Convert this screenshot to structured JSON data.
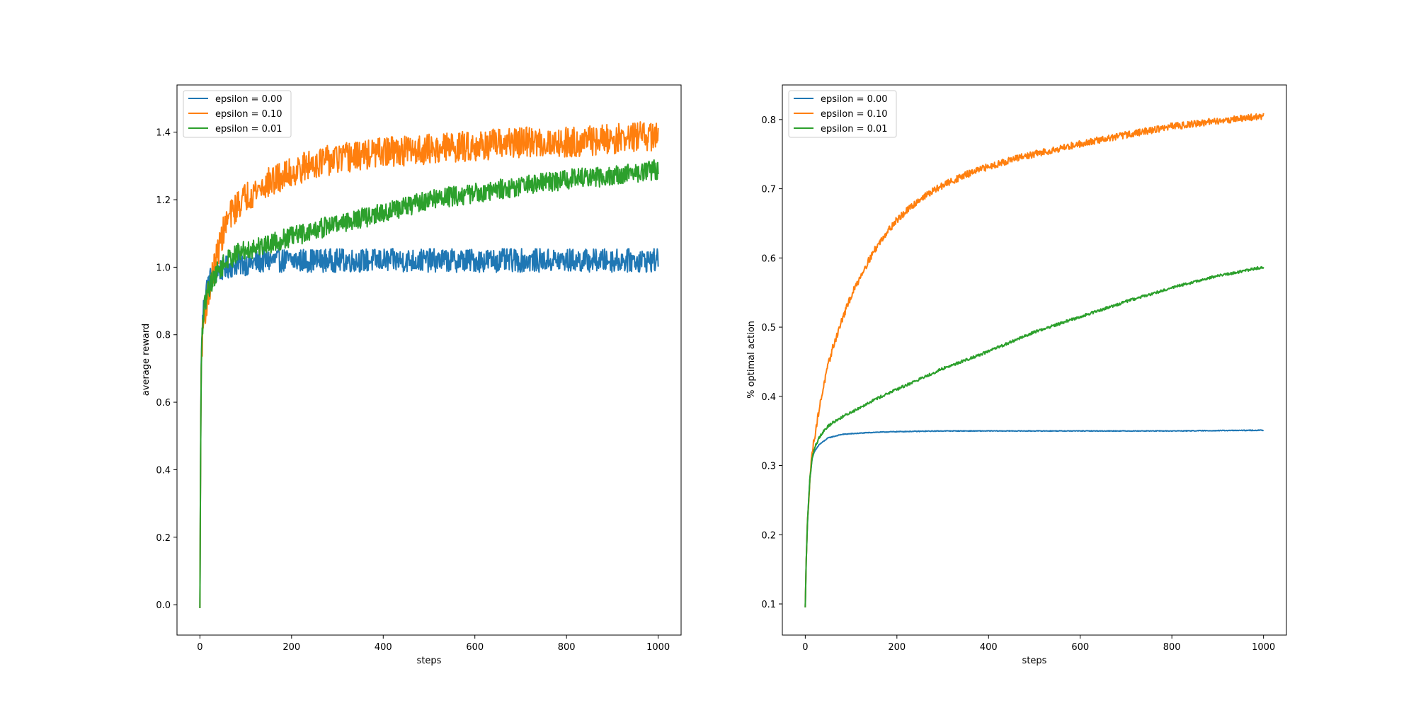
{
  "chart_data": [
    {
      "type": "line",
      "title": "",
      "xlabel": "steps",
      "ylabel": "average reward",
      "xlim": [
        -50,
        1050
      ],
      "ylim": [
        -0.09,
        1.54
      ],
      "xticks": [
        0,
        200,
        400,
        600,
        800,
        1000
      ],
      "yticks": [
        0.0,
        0.2,
        0.4,
        0.6,
        0.8,
        1.0,
        1.2,
        1.4
      ],
      "ytick_format": 1,
      "grid": false,
      "legend_position": "top-left",
      "series": [
        {
          "name": "epsilon = 0.00",
          "color": "#1f77b4",
          "noise": 0.035,
          "x": [
            0,
            1,
            2,
            3,
            5,
            8,
            10,
            15,
            20,
            30,
            40,
            60,
            80,
            100,
            150,
            200,
            300,
            400,
            500,
            600,
            700,
            800,
            900,
            1000
          ],
          "y": [
            -0.01,
            0.3,
            0.55,
            0.72,
            0.82,
            0.88,
            0.9,
            0.94,
            0.96,
            0.98,
            0.99,
            1.0,
            1.01,
            1.01,
            1.02,
            1.02,
            1.02,
            1.02,
            1.02,
            1.02,
            1.02,
            1.02,
            1.02,
            1.02
          ]
        },
        {
          "name": "epsilon = 0.10",
          "color": "#ff7f0e",
          "noise": 0.045,
          "x": [
            0,
            1,
            2,
            3,
            5,
            8,
            10,
            15,
            20,
            30,
            40,
            50,
            60,
            80,
            100,
            150,
            200,
            250,
            300,
            400,
            500,
            600,
            700,
            800,
            900,
            1000
          ],
          "y": [
            -0.01,
            0.3,
            0.55,
            0.7,
            0.78,
            0.84,
            0.86,
            0.9,
            0.93,
            0.99,
            1.05,
            1.1,
            1.14,
            1.18,
            1.21,
            1.25,
            1.28,
            1.31,
            1.32,
            1.34,
            1.35,
            1.36,
            1.37,
            1.37,
            1.38,
            1.39
          ]
        },
        {
          "name": "epsilon = 0.01",
          "color": "#2ca02c",
          "noise": 0.03,
          "x": [
            0,
            1,
            2,
            3,
            5,
            8,
            10,
            15,
            20,
            30,
            40,
            60,
            80,
            100,
            150,
            200,
            300,
            400,
            500,
            600,
            700,
            800,
            900,
            1000
          ],
          "y": [
            -0.01,
            0.3,
            0.55,
            0.7,
            0.8,
            0.86,
            0.88,
            0.92,
            0.94,
            0.97,
            0.99,
            1.02,
            1.04,
            1.05,
            1.07,
            1.09,
            1.13,
            1.16,
            1.2,
            1.22,
            1.24,
            1.26,
            1.27,
            1.29
          ]
        }
      ]
    },
    {
      "type": "line",
      "title": "",
      "xlabel": "steps",
      "ylabel": "% optimal action",
      "xlim": [
        -50,
        1050
      ],
      "ylim": [
        0.055,
        0.85
      ],
      "xticks": [
        0,
        200,
        400,
        600,
        800,
        1000
      ],
      "yticks": [
        0.1,
        0.2,
        0.3,
        0.4,
        0.5,
        0.6,
        0.7,
        0.8
      ],
      "ytick_format": 1,
      "grid": false,
      "legend_position": "top-left",
      "series": [
        {
          "name": "epsilon = 0.00",
          "color": "#1f77b4",
          "noise": 0.0005,
          "x": [
            0,
            2,
            5,
            10,
            15,
            20,
            30,
            50,
            80,
            100,
            150,
            200,
            300,
            400,
            600,
            800,
            1000
          ],
          "y": [
            0.095,
            0.16,
            0.22,
            0.28,
            0.31,
            0.32,
            0.33,
            0.34,
            0.345,
            0.346,
            0.348,
            0.349,
            0.35,
            0.35,
            0.35,
            0.35,
            0.351
          ]
        },
        {
          "name": "epsilon = 0.10",
          "color": "#ff7f0e",
          "noise": 0.005,
          "x": [
            0,
            2,
            5,
            10,
            15,
            20,
            30,
            40,
            50,
            60,
            80,
            100,
            125,
            150,
            175,
            200,
            250,
            300,
            350,
            400,
            450,
            500,
            600,
            700,
            800,
            900,
            1000
          ],
          "y": [
            0.095,
            0.16,
            0.22,
            0.28,
            0.32,
            0.34,
            0.38,
            0.415,
            0.445,
            0.47,
            0.51,
            0.545,
            0.58,
            0.61,
            0.635,
            0.655,
            0.685,
            0.705,
            0.72,
            0.732,
            0.742,
            0.75,
            0.765,
            0.778,
            0.79,
            0.798,
            0.805
          ]
        },
        {
          "name": "epsilon = 0.01",
          "color": "#2ca02c",
          "noise": 0.002,
          "x": [
            0,
            2,
            5,
            10,
            15,
            20,
            30,
            40,
            50,
            60,
            80,
            100,
            150,
            200,
            300,
            400,
            500,
            600,
            700,
            800,
            900,
            1000
          ],
          "y": [
            0.095,
            0.16,
            0.22,
            0.28,
            0.31,
            0.325,
            0.34,
            0.35,
            0.357,
            0.362,
            0.37,
            0.377,
            0.395,
            0.41,
            0.44,
            0.465,
            0.493,
            0.515,
            0.537,
            0.557,
            0.574,
            0.587
          ]
        }
      ]
    }
  ]
}
